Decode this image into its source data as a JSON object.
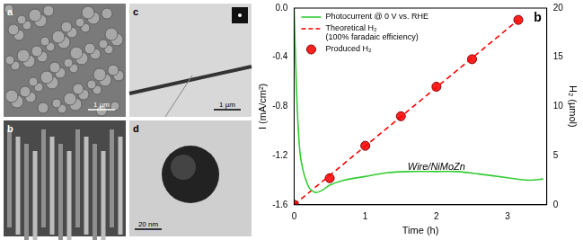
{
  "image_panels": [
    {
      "label": "a",
      "scale_bar": "1 µm"
    },
    {
      "label": "c",
      "scale_bar": "1 µm"
    },
    {
      "label": "b"
    },
    {
      "label": "d",
      "scale_bar": "20 nm"
    }
  ],
  "chart_data": {
    "type": "line",
    "x_label": "Time (h)",
    "y_label": "I (mA/cm²)",
    "y2_label": "H₂ (µmol)",
    "annotations": [
      "b",
      "Wire/NiMoZn"
    ],
    "xlim": [
      0,
      3.55
    ],
    "xticks": [
      0,
      1,
      2,
      3
    ],
    "ylim": [
      -1.6,
      0
    ],
    "yticks": [
      -1.6,
      -1.2,
      -0.8,
      -0.4,
      {
        "value": 0,
        "label": "0.0"
      }
    ],
    "y2lim": [
      0,
      20
    ],
    "y2ticks": [
      0,
      5,
      10,
      15,
      20
    ],
    "grid": false,
    "legend": "upper left",
    "series": [
      {
        "name": "Photocurrent @ 0 V vs. RHE",
        "color": "#33cc33",
        "type": "line",
        "line_style": "solid",
        "marker": "none",
        "x": [
          0,
          0.03,
          0.06,
          0.1,
          0.2,
          0.3,
          0.4,
          0.5,
          0.7,
          1.0,
          1.3,
          1.6,
          2.0,
          2.3,
          2.6,
          3.0,
          3.3,
          3.5
        ],
        "values": [
          0,
          -0.6,
          -1.0,
          -1.25,
          -1.45,
          -1.5,
          -1.48,
          -1.44,
          -1.4,
          -1.37,
          -1.34,
          -1.33,
          -1.33,
          -1.33,
          -1.35,
          -1.38,
          -1.4,
          -1.39
        ]
      },
      {
        "name": "Theoretical H₂\n(100% faradaic efficiency)",
        "color": "#ff0000",
        "type": "line",
        "line_style": "dashed",
        "marker": "none",
        "axis": "y2",
        "x": [
          0,
          3.15
        ],
        "values": [
          0,
          18.8
        ]
      },
      {
        "name": "Produced H₂",
        "color": "#ff2020",
        "type": "scatter",
        "line_style": "none",
        "marker": "circle",
        "axis": "y2",
        "x": [
          0,
          0.5,
          1.0,
          1.5,
          2.0,
          2.5,
          3.15
        ],
        "values": [
          0,
          2.7,
          6,
          9,
          12,
          14.8,
          18.8
        ]
      }
    ]
  }
}
